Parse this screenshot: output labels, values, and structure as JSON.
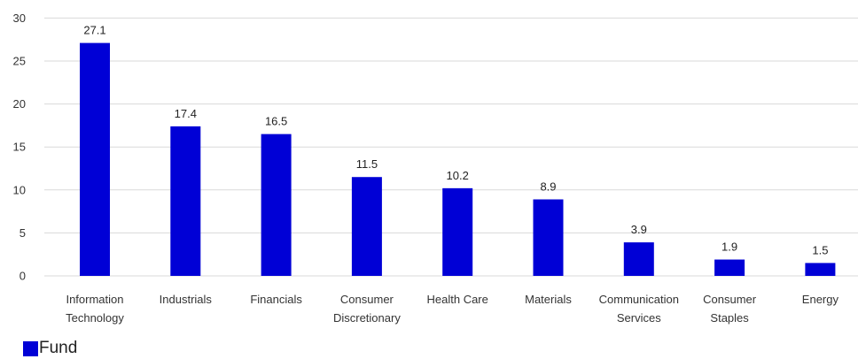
{
  "chart_data": {
    "type": "bar",
    "categories": [
      [
        "Information",
        "Technology"
      ],
      [
        "Industrials"
      ],
      [
        "Financials"
      ],
      [
        "Consumer",
        "Discretionary"
      ],
      [
        "Health Care"
      ],
      [
        "Materials"
      ],
      [
        "Communication",
        "Services"
      ],
      [
        "Consumer",
        "Staples"
      ],
      [
        "Energy"
      ]
    ],
    "series": [
      {
        "name": "Fund",
        "values": [
          27.1,
          17.4,
          16.5,
          11.5,
          10.2,
          8.9,
          3.9,
          1.9,
          1.5
        ]
      }
    ],
    "data_labels": [
      "27.1",
      "17.4",
      "16.5",
      "11.5",
      "10.2",
      "8.9",
      "3.9",
      "1.9",
      "1.5"
    ],
    "yticks": [
      "0",
      "5",
      "10",
      "15",
      "20",
      "25",
      "30"
    ],
    "ylim": [
      0,
      30
    ],
    "grid": true,
    "legend_position": "bottom-left",
    "bar_color": "#0000d6",
    "grid_color": "#d9d9d9"
  }
}
